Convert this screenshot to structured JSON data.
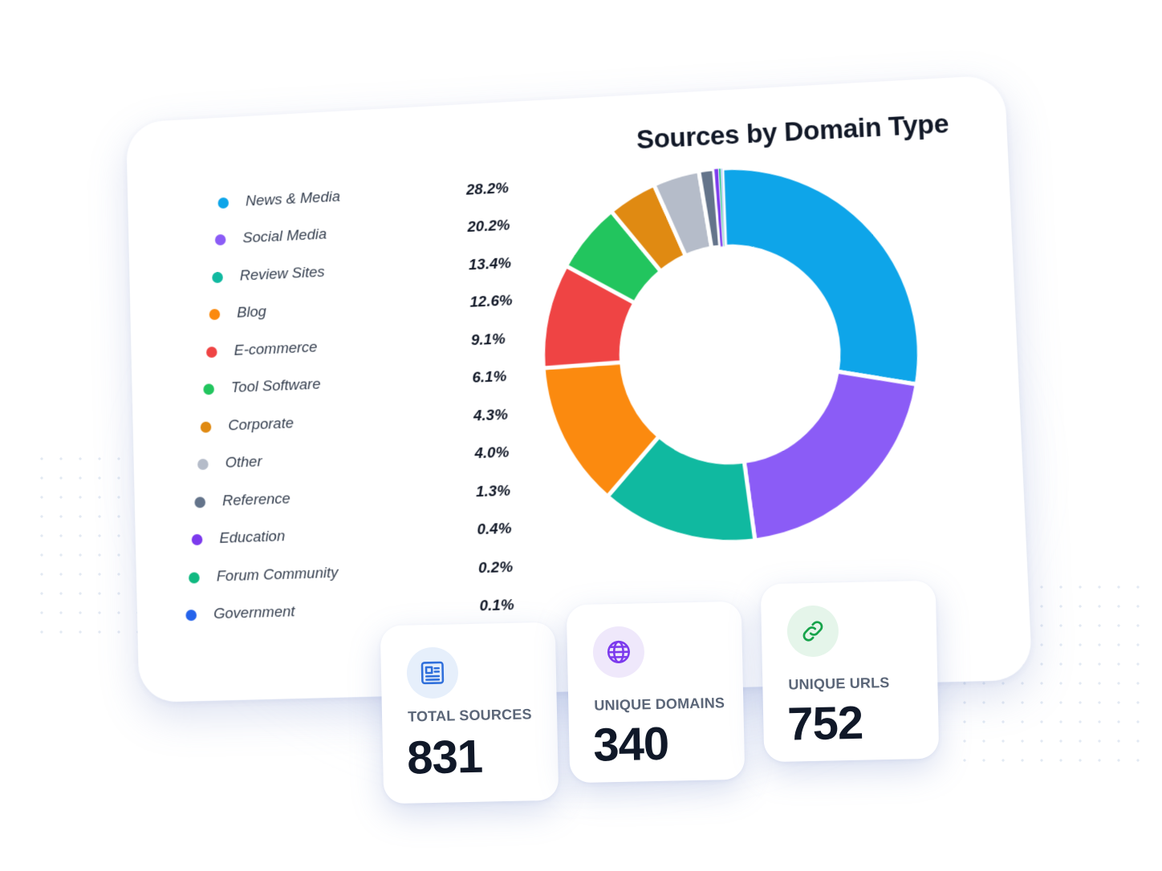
{
  "chart_data": {
    "type": "pie",
    "title": "Sources by Domain Type",
    "categories": [
      "News & Media",
      "Social Media",
      "Review Sites",
      "Blog",
      "E-commerce",
      "Tool Software",
      "Corporate",
      "Other",
      "Reference",
      "Education",
      "Forum Community",
      "Government"
    ],
    "values": [
      28.2,
      20.2,
      13.4,
      12.6,
      9.1,
      6.1,
      4.3,
      4.0,
      1.3,
      0.4,
      0.2,
      0.1
    ],
    "value_labels": [
      "28.2%",
      "20.2%",
      "13.4%",
      "12.6%",
      "9.1%",
      "6.1%",
      "4.3%",
      "4.0%",
      "1.3%",
      "0.4%",
      "0.2%",
      "0.1%"
    ],
    "colors": [
      "#0ea5e9",
      "#8b5cf6",
      "#10b9a0",
      "#fb8a0f",
      "#ef4444",
      "#22c55e",
      "#e08a12",
      "#b5bcc9",
      "#64748b",
      "#7c3aed",
      "#10b981",
      "#2563eb"
    ],
    "legend_position": "left"
  },
  "stats": [
    {
      "label": "TOTAL SOURCES",
      "value": "831",
      "icon": "newspaper-icon",
      "color": "#2f6fdb",
      "bg": "#e6effb"
    },
    {
      "label": "UNIQUE DOMAINS",
      "value": "340",
      "icon": "globe-icon",
      "color": "#7c3aed",
      "bg": "#efe8fb"
    },
    {
      "label": "UNIQUE URLS",
      "value": "752",
      "icon": "link-icon",
      "color": "#16a34a",
      "bg": "#e5f5ea"
    }
  ]
}
